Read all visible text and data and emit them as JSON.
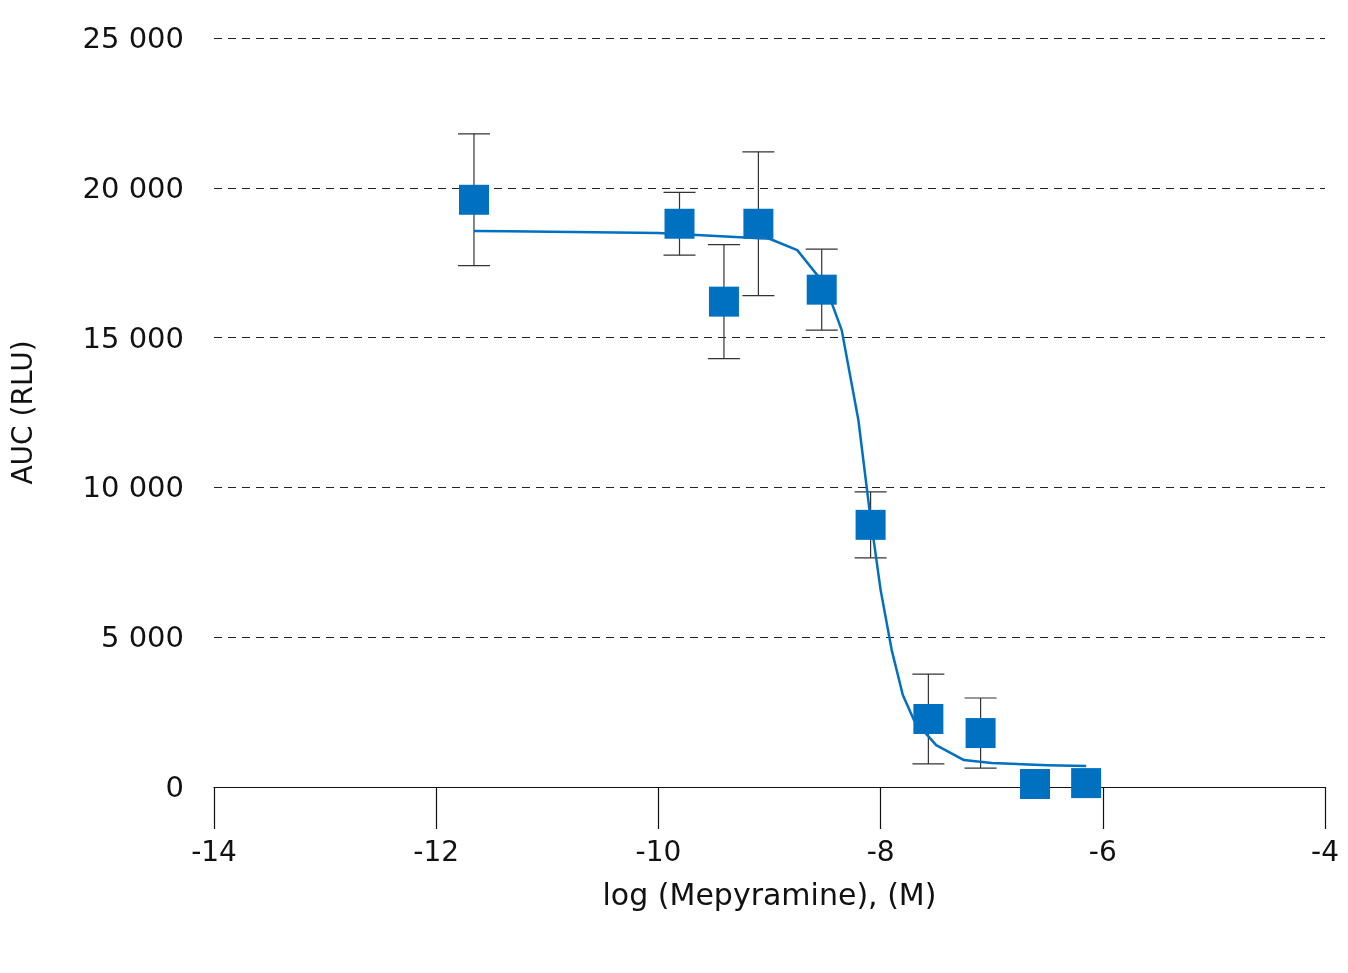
{
  "chart_data": {
    "type": "scatter",
    "xlabel": "log (Mepyramine), (M)",
    "ylabel": "AUC (RLU)",
    "xlim": [
      -14,
      -4
    ],
    "xticks": [
      -14,
      -12,
      -10,
      -8,
      -6,
      -4
    ],
    "ylim": [
      0,
      25000
    ],
    "yticks": [
      {
        "value": 0,
        "label": "0"
      },
      {
        "value": 5000,
        "label": "5 000"
      },
      {
        "value": 10000,
        "label": "10 000"
      },
      {
        "value": 15000,
        "label": "15 000"
      },
      {
        "value": 20000,
        "label": "20 000"
      },
      {
        "value": 25000,
        "label": "25 000"
      }
    ],
    "grid": "y",
    "marker": "square",
    "series": [
      {
        "color": "#0070c0",
        "x": [
          -11.66,
          -9.81,
          -9.41,
          -9.1,
          -8.53,
          -8.09,
          -7.57,
          -7.1,
          -6.61,
          -6.15
        ],
        "values": [
          19600,
          18800,
          16200,
          18800,
          16600,
          8750,
          2270,
          1800,
          100,
          130
        ],
        "errors": [
          2200,
          1050,
          1900,
          2400,
          1350,
          1100,
          1500,
          1170,
          null,
          null
        ]
      },
      {
        "type": "line",
        "color": "#0070c0",
        "marker": "none",
        "line_style": "solid",
        "x": [
          -11.66,
          -10,
          -9,
          -8.75,
          -8.5,
          -8.35,
          -8.2,
          -8.1,
          -8,
          -7.9,
          -7.8,
          -7.7,
          -7.5,
          -7.25,
          -7,
          -6.5,
          -6.15
        ],
        "values": [
          18560,
          18490,
          18300,
          17920,
          16760,
          15250,
          12250,
          9250,
          6580,
          4570,
          3070,
          2240,
          1400,
          900,
          800,
          730,
          700
        ]
      }
    ]
  }
}
